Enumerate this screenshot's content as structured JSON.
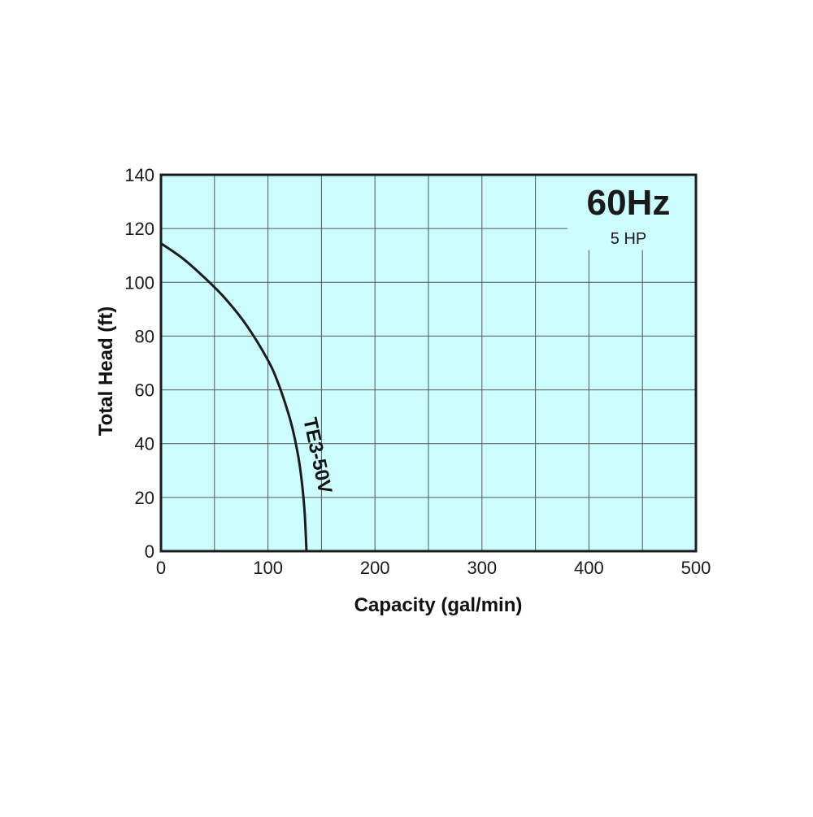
{
  "chart_data": {
    "type": "line",
    "title": "",
    "xlabel": "Capacity (gal/min)",
    "ylabel": "Total Head (ft)",
    "xlim": [
      0,
      500
    ],
    "ylim": [
      0,
      140
    ],
    "x_ticks": [
      0,
      100,
      200,
      300,
      400,
      500
    ],
    "y_ticks": [
      0,
      20,
      40,
      60,
      80,
      100,
      120,
      140
    ],
    "grid": true,
    "plot_background": "#ccfdff",
    "frame_color": "#1c1c1c",
    "grid_color": "#555555",
    "frequency_label": "60Hz",
    "power_label": "5 HP",
    "series": [
      {
        "name": "TE3-50V",
        "color": "#1c1c1c",
        "x": [
          0,
          20,
          40,
          60,
          80,
          100,
          110,
          120,
          125,
          130,
          134,
          136
        ],
        "y": [
          114.5,
          109,
          102,
          94,
          84,
          71,
          62,
          50,
          42,
          31,
          16,
          0
        ]
      }
    ]
  }
}
